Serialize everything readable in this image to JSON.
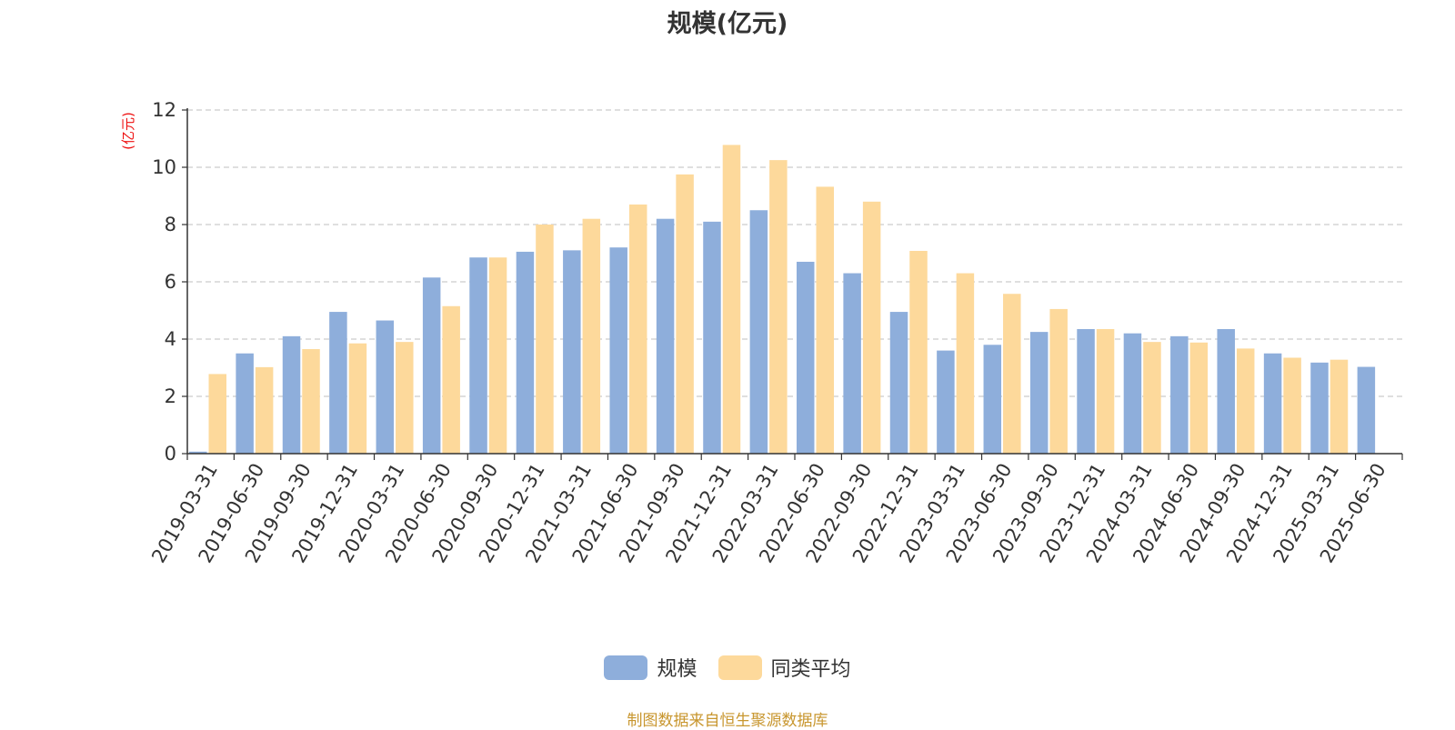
{
  "chart_data": {
    "type": "bar",
    "title": "规模(亿元)",
    "ylabel": "(亿元)",
    "xlabel": "",
    "ylim": [
      0,
      12
    ],
    "yticks": [
      0,
      2,
      4,
      6,
      8,
      10,
      12
    ],
    "grid": true,
    "legend_position": "bottom",
    "categories": [
      "2019-03-31",
      "2019-06-30",
      "2019-09-30",
      "2019-12-31",
      "2020-03-31",
      "2020-06-30",
      "2020-09-30",
      "2020-12-31",
      "2021-03-31",
      "2021-06-30",
      "2021-09-30",
      "2021-12-31",
      "2022-03-31",
      "2022-06-30",
      "2022-09-30",
      "2022-12-31",
      "2023-03-31",
      "2023-06-30",
      "2023-09-30",
      "2023-12-31",
      "2024-03-31",
      "2024-06-30",
      "2024-09-30",
      "2024-12-31",
      "2025-03-31",
      "2025-06-30"
    ],
    "series": [
      {
        "name": "规模",
        "color": "#8eaedb",
        "values": [
          0.07,
          3.5,
          4.1,
          4.95,
          4.65,
          6.15,
          6.85,
          7.05,
          7.1,
          7.2,
          8.2,
          8.1,
          8.5,
          6.7,
          6.3,
          4.95,
          3.6,
          3.8,
          4.25,
          4.35,
          4.2,
          4.1,
          4.35,
          3.5,
          3.18,
          3.03
        ]
      },
      {
        "name": "同类平均",
        "color": "#fdd99b",
        "values": [
          2.78,
          3.02,
          3.65,
          3.85,
          3.9,
          5.15,
          6.85,
          8.0,
          8.2,
          8.7,
          9.75,
          10.78,
          10.25,
          9.32,
          8.8,
          7.08,
          6.3,
          5.58,
          5.05,
          4.35,
          3.9,
          3.88,
          3.67,
          3.35,
          3.28,
          null
        ]
      }
    ]
  },
  "source_note": "制图数据来自恒生聚源数据库",
  "colors": {
    "axis": "#333333",
    "grid": "#cccccc",
    "ylabel": "#ee1111",
    "source": "#c8962e"
  }
}
